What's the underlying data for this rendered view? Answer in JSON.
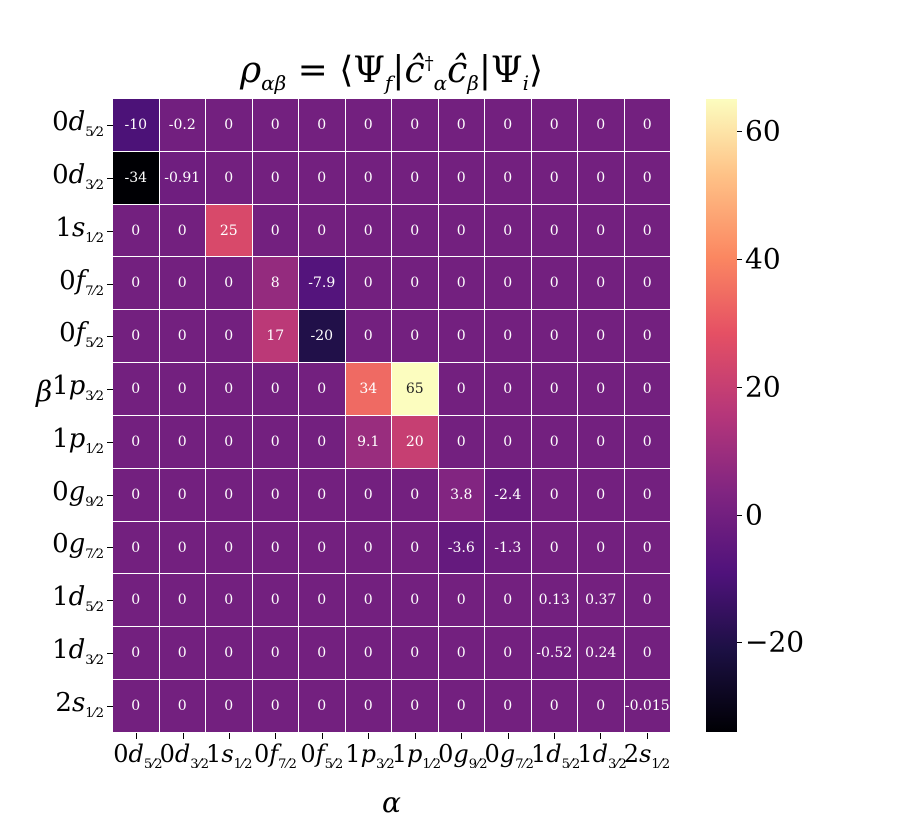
{
  "chart_data": {
    "type": "heatmap",
    "title": "ρ_{αβ} = ⟨Ψ_f|ĉ†_α ĉ_β|Ψ_i⟩",
    "xlabel": "α",
    "ylabel": "β",
    "colormap": "magma",
    "vmin": -34,
    "vmax": 65,
    "colorbar_ticks": [
      -20,
      0,
      20,
      40,
      60
    ],
    "colorbar_tick_labels": [
      "−20",
      "0",
      "20",
      "40",
      "60"
    ],
    "x_categories": [
      {
        "n": "0",
        "l": "d",
        "j": "5/2"
      },
      {
        "n": "0",
        "l": "d",
        "j": "3/2"
      },
      {
        "n": "1",
        "l": "s",
        "j": "1/2"
      },
      {
        "n": "0",
        "l": "f",
        "j": "7/2"
      },
      {
        "n": "0",
        "l": "f",
        "j": "5/2"
      },
      {
        "n": "1",
        "l": "p",
        "j": "3/2"
      },
      {
        "n": "1",
        "l": "p",
        "j": "1/2"
      },
      {
        "n": "0",
        "l": "g",
        "j": "9/2"
      },
      {
        "n": "0",
        "l": "g",
        "j": "7/2"
      },
      {
        "n": "1",
        "l": "d",
        "j": "5/2"
      },
      {
        "n": "1",
        "l": "d",
        "j": "3/2"
      },
      {
        "n": "2",
        "l": "s",
        "j": "1/2"
      }
    ],
    "y_categories": [
      {
        "n": "0",
        "l": "d",
        "j": "5/2"
      },
      {
        "n": "0",
        "l": "d",
        "j": "3/2"
      },
      {
        "n": "1",
        "l": "s",
        "j": "1/2"
      },
      {
        "n": "0",
        "l": "f",
        "j": "7/2"
      },
      {
        "n": "0",
        "l": "f",
        "j": "5/2"
      },
      {
        "n": "1",
        "l": "p",
        "j": "3/2"
      },
      {
        "n": "1",
        "l": "p",
        "j": "1/2"
      },
      {
        "n": "0",
        "l": "g",
        "j": "9/2"
      },
      {
        "n": "0",
        "l": "g",
        "j": "7/2"
      },
      {
        "n": "1",
        "l": "d",
        "j": "5/2"
      },
      {
        "n": "1",
        "l": "d",
        "j": "3/2"
      },
      {
        "n": "2",
        "l": "s",
        "j": "1/2"
      }
    ],
    "values": [
      [
        -10,
        -0.2,
        0,
        0,
        0,
        0,
        0,
        0,
        0,
        0,
        0,
        0
      ],
      [
        -34,
        -0.91,
        0,
        0,
        0,
        0,
        0,
        0,
        0,
        0,
        0,
        0
      ],
      [
        0,
        0,
        25,
        0,
        0,
        0,
        0,
        0,
        0,
        0,
        0,
        0
      ],
      [
        0,
        0,
        0,
        8,
        -7.9,
        0,
        0,
        0,
        0,
        0,
        0,
        0
      ],
      [
        0,
        0,
        0,
        17,
        -20,
        0,
        0,
        0,
        0,
        0,
        0,
        0
      ],
      [
        0,
        0,
        0,
        0,
        0,
        34,
        65,
        0,
        0,
        0,
        0,
        0
      ],
      [
        0,
        0,
        0,
        0,
        0,
        9.1,
        20,
        0,
        0,
        0,
        0,
        0
      ],
      [
        0,
        0,
        0,
        0,
        0,
        0,
        0,
        3.8,
        -2.4,
        0,
        0,
        0
      ],
      [
        0,
        0,
        0,
        0,
        0,
        0,
        0,
        -3.6,
        -1.3,
        0,
        0,
        0
      ],
      [
        0,
        0,
        0,
        0,
        0,
        0,
        0,
        0,
        0,
        0.13,
        0.37,
        0
      ],
      [
        0,
        0,
        0,
        0,
        0,
        0,
        0,
        0,
        0,
        -0.52,
        0.24,
        0
      ],
      [
        0,
        0,
        0,
        0,
        0,
        0,
        0,
        0,
        0,
        0,
        0,
        -0.015
      ]
    ],
    "cell_labels": [
      [
        "-10",
        "-0.2",
        "0",
        "0",
        "0",
        "0",
        "0",
        "0",
        "0",
        "0",
        "0",
        "0"
      ],
      [
        "-34",
        "-0.91",
        "0",
        "0",
        "0",
        "0",
        "0",
        "0",
        "0",
        "0",
        "0",
        "0"
      ],
      [
        "0",
        "0",
        "25",
        "0",
        "0",
        "0",
        "0",
        "0",
        "0",
        "0",
        "0",
        "0"
      ],
      [
        "0",
        "0",
        "0",
        "8",
        "-7.9",
        "0",
        "0",
        "0",
        "0",
        "0",
        "0",
        "0"
      ],
      [
        "0",
        "0",
        "0",
        "17",
        "-20",
        "0",
        "0",
        "0",
        "0",
        "0",
        "0",
        "0"
      ],
      [
        "0",
        "0",
        "0",
        "0",
        "0",
        "34",
        "65",
        "0",
        "0",
        "0",
        "0",
        "0"
      ],
      [
        "0",
        "0",
        "0",
        "0",
        "0",
        "9.1",
        "20",
        "0",
        "0",
        "0",
        "0",
        "0"
      ],
      [
        "0",
        "0",
        "0",
        "0",
        "0",
        "0",
        "0",
        "3.8",
        "-2.4",
        "0",
        "0",
        "0"
      ],
      [
        "0",
        "0",
        "0",
        "0",
        "0",
        "0",
        "0",
        "-3.6",
        "-1.3",
        "0",
        "0",
        "0"
      ],
      [
        "0",
        "0",
        "0",
        "0",
        "0",
        "0",
        "0",
        "0",
        "0",
        "0.13",
        "0.37",
        "0"
      ],
      [
        "0",
        "0",
        "0",
        "0",
        "0",
        "0",
        "0",
        "0",
        "0",
        "-0.52",
        "0.24",
        "0"
      ],
      [
        "0",
        "0",
        "0",
        "0",
        "0",
        "0",
        "0",
        "0",
        "0",
        "0",
        "0",
        "-0.015"
      ]
    ],
    "grid": true,
    "grid_color": "#ffffff"
  }
}
